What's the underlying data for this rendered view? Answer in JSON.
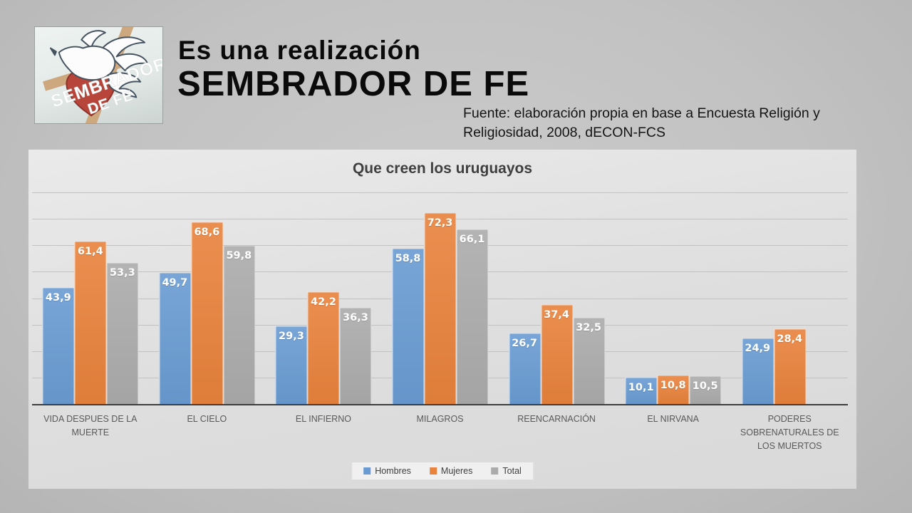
{
  "header": {
    "line1": "Es una realización",
    "line2": "SEMBRADOR DE FE",
    "source": "Fuente: elaboración propia en base a Encuesta Religión y Religiosidad, 2008, dECON-FCS"
  },
  "logo": {
    "text_line1": "SEMBRADOR",
    "text_line2": "DE  FE"
  },
  "chart_data": {
    "type": "bar",
    "title": "Que creen los uruguayos",
    "categories": [
      "VIDA DESPUES DE LA MUERTE",
      "EL CIELO",
      "EL INFIERNO",
      "MILAGROS",
      "REENCARNACIÓN",
      "EL NIRVANA",
      "PODERES SOBRENATURALES DE LOS MUERTOS"
    ],
    "series": [
      {
        "name": "Hombres",
        "color": "#699bd2",
        "values": [
          43.9,
          49.7,
          29.3,
          58.8,
          26.7,
          10.1,
          24.9
        ]
      },
      {
        "name": "Mujeres",
        "color": "#e8823c",
        "values": [
          61.4,
          68.6,
          42.2,
          72.3,
          37.4,
          10.8,
          28.4
        ]
      },
      {
        "name": "Total",
        "color": "#ababab",
        "values": [
          53.3,
          59.8,
          36.3,
          66.1,
          32.5,
          10.5,
          null
        ]
      }
    ],
    "ylim": [
      0,
      80
    ],
    "gridline_step": 10,
    "grid": true,
    "y_axis_labels": false,
    "legend_position": "bottom",
    "decimal_separator": ","
  }
}
